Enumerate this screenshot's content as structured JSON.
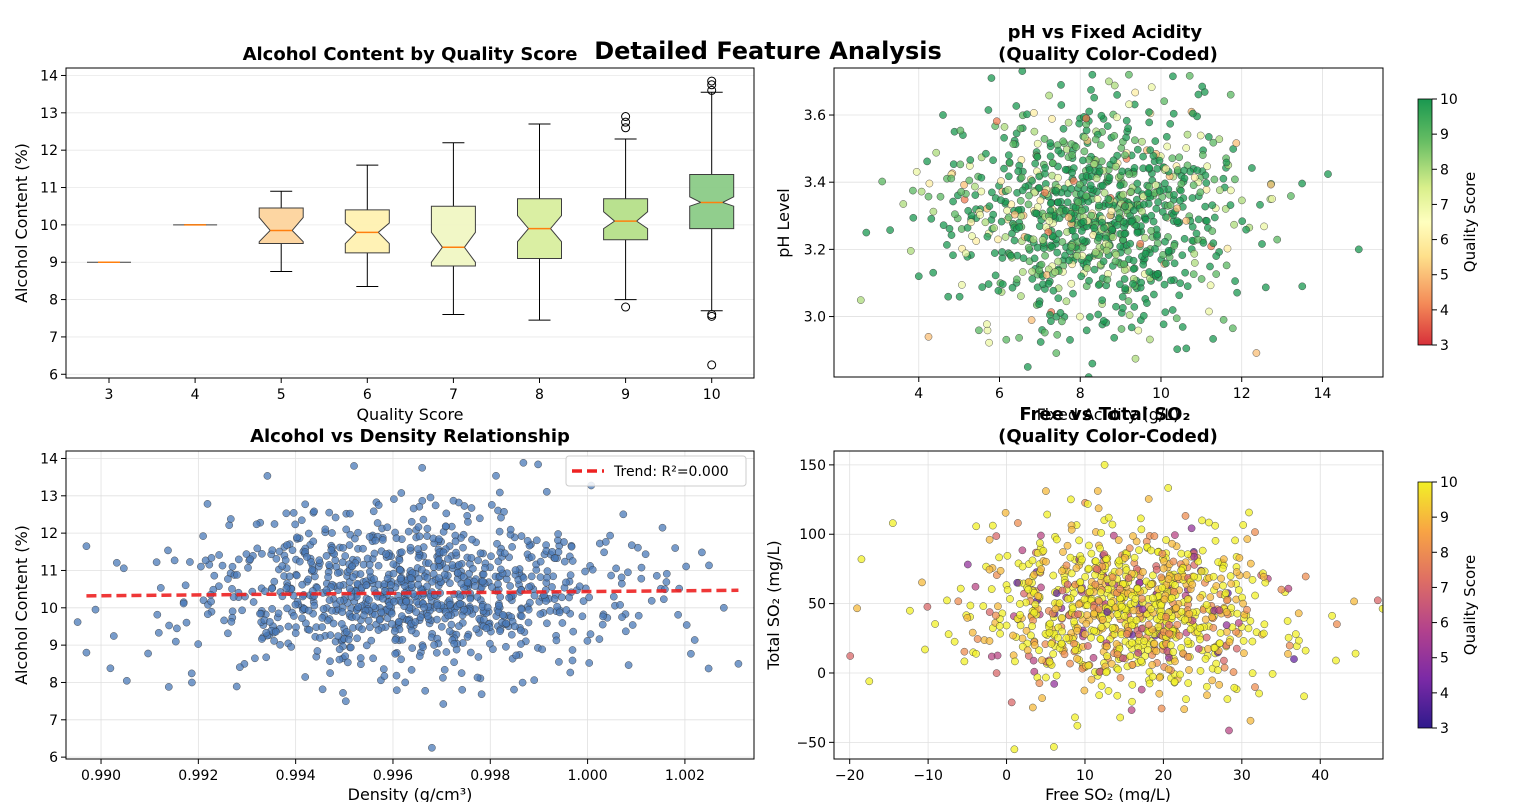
{
  "figure_title": "Detailed Feature Analysis",
  "chart_data": [
    {
      "type": "box",
      "title": "Alcohol Content by Quality Score",
      "xlabel": "Quality Score",
      "ylabel": "Alcohol Content (%)",
      "ylim": [
        5.9,
        14.2
      ],
      "yticks": [
        6,
        7,
        8,
        9,
        10,
        11,
        12,
        13,
        14
      ],
      "grid": true,
      "categories": [
        "3",
        "4",
        "5",
        "6",
        "7",
        "8",
        "9",
        "10"
      ],
      "box_colors": [
        "#f4a582",
        "#fdbf6f",
        "#fdd49e",
        "#fff2b2",
        "#f1f7c4",
        "#d9ef9f",
        "#b6e08a",
        "#8ccc87"
      ],
      "boxes": [
        {
          "q1": 9.0,
          "median": 9.0,
          "q3": 9.0,
          "whisker_low": 9.0,
          "whisker_high": 9.0,
          "notch_low": 9.0,
          "notch_high": 9.0,
          "outliers": []
        },
        {
          "q1": 10.0,
          "median": 10.0,
          "q3": 10.0,
          "whisker_low": 10.0,
          "whisker_high": 10.0,
          "notch_low": 10.0,
          "notch_high": 10.0,
          "outliers": []
        },
        {
          "q1": 9.5,
          "median": 9.85,
          "q3": 10.45,
          "whisker_low": 8.75,
          "whisker_high": 10.9,
          "notch_low": 9.55,
          "notch_high": 10.2,
          "outliers": []
        },
        {
          "q1": 9.25,
          "median": 9.8,
          "q3": 10.4,
          "whisker_low": 8.35,
          "whisker_high": 11.6,
          "notch_low": 9.5,
          "notch_high": 10.05,
          "outliers": []
        },
        {
          "q1": 8.9,
          "median": 9.4,
          "q3": 10.5,
          "whisker_low": 7.6,
          "whisker_high": 12.2,
          "notch_low": 9.0,
          "notch_high": 9.8,
          "outliers": []
        },
        {
          "q1": 9.1,
          "median": 9.9,
          "q3": 10.7,
          "whisker_low": 7.45,
          "whisker_high": 12.7,
          "notch_low": 9.55,
          "notch_high": 10.25,
          "outliers": []
        },
        {
          "q1": 9.6,
          "median": 10.1,
          "q3": 10.7,
          "whisker_low": 8.0,
          "whisker_high": 12.3,
          "notch_low": 9.9,
          "notch_high": 10.35,
          "outliers": [
            7.8,
            12.6,
            12.75,
            12.9
          ]
        },
        {
          "q1": 9.9,
          "median": 10.6,
          "q3": 11.35,
          "whisker_low": 7.7,
          "whisker_high": 13.55,
          "notch_low": 10.5,
          "notch_high": 10.75,
          "outliers": [
            7.55,
            7.6,
            6.25,
            13.6,
            13.75,
            13.85
          ]
        }
      ]
    },
    {
      "type": "scatter",
      "title": "pH vs Fixed Acidity\n(Quality Color-Coded)",
      "xlabel": "Fixed Acidity (g/L)",
      "ylabel": "pH Level",
      "xlim": [
        1.9,
        15.5
      ],
      "ylim": [
        2.82,
        3.74
      ],
      "xticks": [
        4,
        6,
        8,
        10,
        12,
        14
      ],
      "yticks": [
        3.0,
        3.2,
        3.4,
        3.6
      ],
      "ytick_labels": [
        "3.0",
        "3.2",
        "3.4",
        "3.6"
      ],
      "grid": true,
      "colormap": "RdYlGn",
      "colorbar_label": "Quality Score",
      "colorbar_range": [
        3,
        10
      ],
      "colorbar_ticks": [
        3,
        4,
        5,
        6,
        7,
        8,
        9,
        10
      ],
      "approx_points": 1000,
      "distribution": {
        "x_mean": 8.3,
        "x_sd": 1.75,
        "y_mean": 3.31,
        "y_sd": 0.16,
        "quality_mostly": 10
      },
      "notable_points": [
        {
          "x": 2.7,
          "y": 3.25
        },
        {
          "x": 14.9,
          "y": 3.2
        },
        {
          "x": 6.7,
          "y": 2.85
        },
        {
          "x": 8.3,
          "y": 3.72
        },
        {
          "x": 5.8,
          "y": 3.71
        },
        {
          "x": 13.5,
          "y": 3.09
        },
        {
          "x": 8.3,
          "y": 2.86
        },
        {
          "x": 4.6,
          "y": 3.6
        },
        {
          "x": 4.0,
          "y": 3.12
        }
      ]
    },
    {
      "type": "scatter",
      "title": "Alcohol vs Density Relationship",
      "xlabel": "Density (g/cm³)",
      "ylabel": "Alcohol Content (%)",
      "xlim": [
        0.98928,
        1.00342
      ],
      "ylim": [
        5.95,
        14.2
      ],
      "xticks": [
        0.99,
        0.992,
        0.994,
        0.996,
        0.998,
        1.0,
        1.002
      ],
      "xtick_labels": [
        "0.990",
        "0.992",
        "0.994",
        "0.996",
        "0.998",
        "1.000",
        "1.002"
      ],
      "yticks": [
        6,
        7,
        8,
        9,
        10,
        11,
        12,
        13,
        14
      ],
      "grid": true,
      "point_color": "#4a7ab8",
      "approx_points": 1000,
      "distribution": {
        "x_mean": 0.9962,
        "x_sd": 0.0022,
        "y_mean": 10.4,
        "y_sd": 1.05
      },
      "notable_points": [
        {
          "x": 0.9968,
          "y": 6.25
        },
        {
          "x": 0.9897,
          "y": 11.65
        },
        {
          "x": 0.9897,
          "y": 8.8
        },
        {
          "x": 1.0031,
          "y": 8.5
        },
        {
          "x": 0.9952,
          "y": 13.8
        },
        {
          "x": 0.9966,
          "y": 13.75
        },
        {
          "x": 1.0028,
          "y": 10.0
        },
        {
          "x": 1.0018,
          "y": 11.6
        }
      ],
      "trend": {
        "label": "Trend: R²=0.000",
        "x": [
          0.9897,
          1.0031
        ],
        "y": [
          10.32,
          10.47
        ],
        "color": "#ee2222"
      },
      "legend_location": "upper right"
    },
    {
      "type": "scatter",
      "title": "Free vs Total SO₂\n(Quality Color-Coded)",
      "xlabel": "Free SO₂ (mg/L)",
      "ylabel": "Total SO₂ (mg/L)",
      "xlim": [
        -22,
        48
      ],
      "ylim": [
        -62,
        160
      ],
      "xticks": [
        -20,
        -10,
        0,
        10,
        20,
        30,
        40
      ],
      "xtick_labels": [
        "−20",
        "−10",
        "0",
        "10",
        "20",
        "30",
        "40"
      ],
      "yticks": [
        -50,
        0,
        50,
        100,
        150
      ],
      "ytick_labels": [
        "−50",
        "0",
        "50",
        "100",
        "150"
      ],
      "grid": true,
      "colormap": "plasma",
      "colorbar_label": "Quality Score",
      "colorbar_range": [
        3,
        10
      ],
      "colorbar_ticks": [
        3,
        4,
        5,
        6,
        7,
        8,
        9,
        10
      ],
      "approx_points": 1000,
      "distribution": {
        "x_mean": 15.5,
        "x_sd": 9.5,
        "y_mean": 46,
        "y_sd": 30,
        "quality_mostly": 10
      },
      "notable_points": [
        {
          "x": 12.5,
          "y": 150
        },
        {
          "x": 1.0,
          "y": -55
        },
        {
          "x": -18.5,
          "y": 82
        },
        {
          "x": -17.5,
          "y": -6
        },
        {
          "x": 44.5,
          "y": 14
        },
        {
          "x": 42,
          "y": 9
        },
        {
          "x": -14.5,
          "y": 108
        },
        {
          "x": 13.5,
          "y": 107
        }
      ]
    }
  ]
}
